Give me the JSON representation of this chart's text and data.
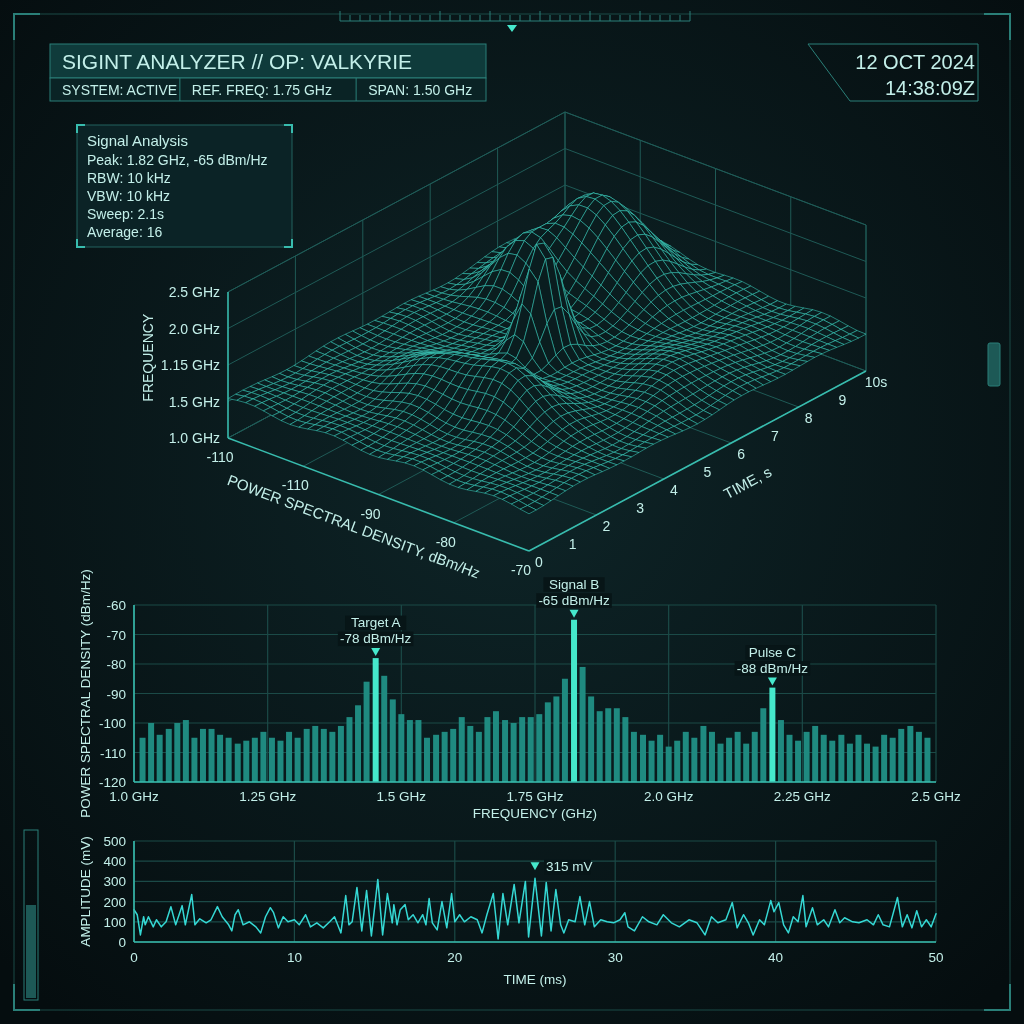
{
  "chart_data": [
    {
      "type": "other",
      "title": "SIGINT ANALYZER // OP: VALKYRIE",
      "annotations": [
        "SYSTEM: ACTIVE",
        "REF. FREQ: 1.75 GHz",
        "SPAN: 1.50 GHz",
        "12 OCT 2024",
        "14:38:09Z"
      ]
    },
    {
      "type": "other",
      "title": "Signal Analysis",
      "annotations": [
        "Peak: 1.82 GHz, -65 dBm/Hz",
        "RBW: 10 kHz",
        "VBW: 10 kHz",
        "Sweep: 2.1s",
        "Average: 16"
      ]
    },
    {
      "type": "other",
      "xlabel": "POWER SPECTRAL DENSITY, dBm/Hz",
      "ylabel": "FREQUENCY",
      "annotations": [
        "TIME, s",
        "2.5 GHz",
        "2.0 GHz",
        "1.15 GHz",
        "1.5 GHz",
        "1.0 GHz",
        "-110",
        "-110",
        "-90",
        "-80",
        "-70",
        "0",
        "1",
        "2",
        "3",
        "4",
        "5",
        "6",
        "7",
        "8",
        "9",
        "10s"
      ]
    },
    {
      "type": "bar",
      "xlabel": "FREQUENCY (GHz)",
      "ylabel": "POWER SPECTRAL DENSITY (dBm/Hz)",
      "x": [
        1.016,
        1.032,
        1.048,
        1.065,
        1.081,
        1.097,
        1.113,
        1.129,
        1.145,
        1.161,
        1.177,
        1.194,
        1.21,
        1.226,
        1.242,
        1.258,
        1.274,
        1.29,
        1.306,
        1.323,
        1.339,
        1.355,
        1.371,
        1.387,
        1.403,
        1.419,
        1.435,
        1.452,
        1.468,
        1.484,
        1.5,
        1.516,
        1.532,
        1.548,
        1.565,
        1.581,
        1.597,
        1.613,
        1.629,
        1.645,
        1.661,
        1.677,
        1.694,
        1.71,
        1.726,
        1.742,
        1.758,
        1.774,
        1.79,
        1.806,
        1.823,
        1.839,
        1.855,
        1.871,
        1.887,
        1.903,
        1.919,
        1.935,
        1.952,
        1.968,
        1.984,
        2.0,
        2.016,
        2.032,
        2.048,
        2.065,
        2.081,
        2.097,
        2.113,
        2.129,
        2.145,
        2.161,
        2.177,
        2.194,
        2.21,
        2.226,
        2.242,
        2.258,
        2.274,
        2.29,
        2.306,
        2.323,
        2.339,
        2.355,
        2.371,
        2.387,
        2.403,
        2.419,
        2.435,
        2.452,
        2.468,
        2.484
      ],
      "base": [
        -120,
        -120,
        -120,
        -120,
        -120,
        -120,
        -120,
        -120,
        -120,
        -120,
        -120,
        -120,
        -120,
        -120,
        -120,
        -120,
        -120,
        -120,
        -120,
        -120,
        -120,
        -120,
        -120,
        -120,
        -120,
        -120,
        -120,
        -120,
        -120,
        -120,
        -120,
        -120,
        -120,
        -120,
        -120,
        -120,
        -120,
        -120,
        -120,
        -120,
        -120,
        -120,
        -120,
        -120,
        -120,
        -120,
        -120,
        -120,
        -120,
        -120,
        -120,
        -120,
        -120,
        -120,
        -120,
        -120,
        -120,
        -120,
        -120,
        -120,
        -120,
        -120,
        -120,
        -120,
        -120,
        -120,
        -120,
        -120,
        -120,
        -120,
        -120,
        -120,
        -120,
        -120,
        -120,
        -120,
        -120,
        -120,
        -120,
        -120,
        -120,
        -120,
        -120,
        -120,
        -120,
        -120,
        -120,
        -120,
        -120,
        -120,
        -120,
        -120
      ],
      "values": [
        15,
        20,
        16,
        18,
        20,
        21,
        15,
        18,
        18,
        16,
        15,
        13,
        14,
        15,
        17,
        15,
        14,
        17,
        15,
        18,
        19,
        18,
        17,
        19,
        22,
        26,
        34,
        42,
        36,
        28,
        23,
        21,
        21,
        15,
        16,
        17,
        18,
        22,
        19,
        17,
        22,
        24,
        21,
        20,
        22,
        22,
        23,
        27,
        29,
        35,
        55,
        39,
        29,
        24,
        25,
        25,
        22,
        17,
        16,
        14,
        16,
        12,
        14,
        17,
        15,
        19,
        17,
        13,
        15,
        17,
        13,
        17,
        25,
        32,
        21,
        16,
        14,
        17,
        19,
        16,
        14,
        16,
        13,
        16,
        13,
        12,
        16,
        15,
        18,
        19,
        17,
        15
      ],
      "colors": [
        "#1f8a80",
        "#1f8a80",
        "#1f8a80",
        "#1f8a80",
        "#1f8a80",
        "#1f8a80",
        "#1f8a80",
        "#1f8a80",
        "#1f8a80",
        "#1f8a80",
        "#1f8a80",
        "#1f8a80",
        "#1f8a80",
        "#1f8a80",
        "#1f8a80",
        "#1f8a80",
        "#1f8a80",
        "#1f8a80",
        "#1f8a80",
        "#1f8a80",
        "#1f8a80",
        "#1f8a80",
        "#1f8a80",
        "#1f8a80",
        "#1f8a80",
        "#1f8a80",
        "#1f8a80",
        "#45e8cb",
        "#1f8a80",
        "#1f8a80",
        "#1f8a80",
        "#1f8a80",
        "#1f8a80",
        "#1f8a80",
        "#1f8a80",
        "#1f8a80",
        "#1f8a80",
        "#1f8a80",
        "#1f8a80",
        "#1f8a80",
        "#1f8a80",
        "#1f8a80",
        "#1f8a80",
        "#1f8a80",
        "#1f8a80",
        "#1f8a80",
        "#1f8a80",
        "#1f8a80",
        "#1f8a80",
        "#1f8a80",
        "#45e8cb",
        "#1f8a80",
        "#1f8a80",
        "#1f8a80",
        "#1f8a80",
        "#1f8a80",
        "#1f8a80",
        "#1f8a80",
        "#1f8a80",
        "#1f8a80",
        "#1f8a80",
        "#1f8a80",
        "#1f8a80",
        "#1f8a80",
        "#1f8a80",
        "#1f8a80",
        "#1f8a80",
        "#1f8a80",
        "#1f8a80",
        "#1f8a80",
        "#1f8a80",
        "#1f8a80",
        "#1f8a80",
        "#45e8cb",
        "#1f8a80",
        "#1f8a80",
        "#1f8a80",
        "#1f8a80",
        "#1f8a80",
        "#1f8a80",
        "#1f8a80",
        "#1f8a80",
        "#1f8a80",
        "#1f8a80",
        "#1f8a80",
        "#1f8a80",
        "#1f8a80",
        "#1f8a80",
        "#1f8a80",
        "#1f8a80",
        "#1f8a80",
        "#1f8a80"
      ],
      "value_labels": [
        null,
        null,
        null,
        null,
        null,
        null,
        null,
        null,
        null,
        null,
        null,
        null,
        null,
        null,
        null,
        null,
        null,
        null,
        null,
        null,
        null,
        null,
        null,
        null,
        null,
        null,
        null,
        "-78 dBm/Hz",
        null,
        null,
        null,
        null,
        null,
        null,
        null,
        null,
        null,
        null,
        null,
        null,
        null,
        null,
        null,
        null,
        null,
        null,
        null,
        null,
        null,
        null,
        "-65 dBm/Hz",
        null,
        null,
        null,
        null,
        null,
        null,
        null,
        null,
        null,
        null,
        null,
        null,
        null,
        null,
        null,
        null,
        null,
        null,
        null,
        null,
        null,
        null,
        "-88 dBm/Hz",
        null,
        null,
        null,
        null,
        null,
        null,
        null,
        null,
        null,
        null,
        null,
        null,
        null,
        null,
        null,
        null,
        null,
        null
      ],
      "xlim": [
        1.0,
        2.5
      ],
      "xticks": [
        {
          "value": 1.0,
          "label": "1.0 GHz"
        },
        {
          "value": 1.25,
          "label": "1.25 GHz"
        },
        {
          "value": 1.5,
          "label": "1.5 GHz"
        },
        {
          "value": 1.75,
          "label": "1.75 GHz"
        },
        {
          "value": 2.0,
          "label": "2.0 GHz"
        },
        {
          "value": 2.25,
          "label": "2.25 GHz"
        },
        {
          "value": 2.5,
          "label": "2.5 GHz"
        }
      ],
      "ylim": [
        -120,
        -60
      ],
      "yticks": [
        -120,
        -110,
        -100,
        -90,
        -80,
        -70,
        -60
      ],
      "grid": true,
      "annotations": [
        {
          "text": "Target A",
          "x": 1.452,
          "y": -78
        },
        {
          "text": "Signal B",
          "x": 1.823,
          "y": -65
        },
        {
          "text": "Pulse C",
          "x": 2.194,
          "y": -88
        }
      ]
    },
    {
      "type": "line",
      "xlabel": "TIME (ms)",
      "ylabel": "AMPLITUDE (mV)",
      "color": "#35d8d4",
      "x": [
        0,
        0.2,
        0.4,
        0.6,
        0.7,
        0.9,
        1.2,
        1.4,
        1.7,
        2.0,
        2.3,
        2.6,
        3.0,
        3.2,
        3.6,
        3.8,
        4.1,
        4.5,
        4.8,
        5.2,
        5.5,
        5.9,
        6.1,
        6.3,
        6.5,
        6.8,
        7.2,
        7.6,
        7.9,
        8.2,
        8.5,
        8.7,
        9.0,
        9.3,
        9.6,
        10.0,
        10.3,
        10.7,
        11.0,
        11.4,
        11.8,
        12.2,
        12.5,
        12.9,
        13.2,
        13.4,
        13.6,
        13.9,
        14.2,
        14.5,
        14.8,
        15.2,
        15.5,
        15.8,
        16.1,
        16.2,
        16.4,
        16.6,
        16.9,
        17.1,
        17.4,
        17.7,
        18.0,
        18.2,
        18.4,
        18.6,
        18.9,
        19.2,
        19.5,
        19.8,
        20.0,
        20.3,
        20.6,
        21.0,
        21.4,
        21.7,
        22.0,
        22.4,
        22.7,
        23.0,
        23.3,
        23.7,
        24.0,
        24.4,
        24.6,
        25.0,
        25.4,
        25.7,
        26.0,
        26.3,
        26.6,
        26.8,
        27.1,
        27.5,
        27.8,
        28.1,
        28.4,
        28.7,
        29.1,
        29.5,
        29.9,
        30.3,
        30.6,
        30.8,
        31.2,
        31.7,
        32.1,
        32.6,
        33.0,
        33.5,
        34.0,
        34.6,
        35.1,
        35.6,
        36.0,
        36.4,
        36.9,
        37.3,
        37.6,
        38.0,
        38.3,
        38.6,
        39.0,
        39.3,
        39.7,
        39.9,
        40.2,
        40.5,
        40.8,
        41.1,
        41.4,
        41.7,
        41.9,
        42.3,
        42.6,
        43.0,
        43.3,
        43.7,
        44.0,
        44.3,
        44.8,
        45.2,
        45.7,
        46.1,
        46.4,
        46.7,
        47.1,
        47.6,
        47.9,
        48.2,
        48.5,
        48.8,
        49.1,
        49.4,
        49.7,
        50.0
      ],
      "values": [
        160,
        135,
        35,
        125,
        85,
        125,
        75,
        110,
        75,
        100,
        175,
        85,
        180,
        85,
        235,
        85,
        115,
        95,
        110,
        175,
        125,
        85,
        55,
        135,
        160,
        85,
        100,
        75,
        45,
        125,
        170,
        145,
        70,
        125,
        100,
        110,
        85,
        135,
        75,
        95,
        70,
        100,
        125,
        45,
        230,
        85,
        100,
        270,
        55,
        255,
        30,
        310,
        35,
        240,
        95,
        185,
        85,
        160,
        185,
        110,
        135,
        95,
        135,
        85,
        215,
        95,
        60,
        200,
        70,
        240,
        100,
        135,
        100,
        125,
        110,
        45,
        135,
        240,
        15,
        240,
        85,
        285,
        95,
        300,
        25,
        315,
        30,
        295,
        55,
        260,
        85,
        45,
        110,
        100,
        225,
        85,
        200,
        75,
        110,
        100,
        95,
        110,
        145,
        75,
        55,
        125,
        100,
        85,
        135,
        95,
        75,
        110,
        95,
        35,
        125,
        95,
        110,
        195,
        70,
        135,
        95,
        35,
        110,
        85,
        205,
        150,
        195,
        85,
        45,
        125,
        100,
        230,
        75,
        170,
        85,
        110,
        75,
        160,
        95,
        120,
        100,
        95,
        110,
        85,
        135,
        85,
        75,
        220,
        75,
        135,
        70,
        155,
        75,
        110,
        75,
        140
      ],
      "xlim": [
        0,
        50
      ],
      "xticks": [
        0,
        10,
        20,
        30,
        40,
        50
      ],
      "ylim": [
        0,
        500
      ],
      "yticks": [
        0,
        100,
        200,
        300,
        400,
        500
      ],
      "grid": true,
      "annotations": [
        {
          "text": "315 mV",
          "x": 25,
          "y": 315
        }
      ]
    }
  ]
}
